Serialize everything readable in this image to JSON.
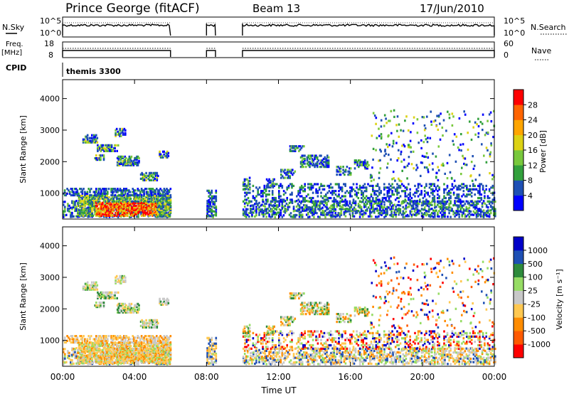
{
  "header": {
    "station": "Prince George (fitACF)",
    "beam": "Beam 13",
    "date": "17/Jun/2010"
  },
  "panels": {
    "nsky": {
      "left_label": "N.Sky",
      "left_ticks": [
        "10^5",
        "10^0"
      ],
      "right_label": "N.Search",
      "right_ticks": [
        "10^5",
        "10^0"
      ]
    },
    "freq": {
      "left_label_1": "Freq.",
      "left_label_2": "[MHz]",
      "left_ticks": [
        "18",
        "8"
      ],
      "right_label": "Nave",
      "right_ticks": [
        "60",
        "0"
      ]
    },
    "cpid": {
      "label": "CPID",
      "value": "themis 3300"
    }
  },
  "colors": {
    "power": [
      "#0000ff",
      "#1e50b4",
      "#32a03c",
      "#78c83c",
      "#dcd214",
      "#ffa500",
      "#ff6400",
      "#ff0000"
    ],
    "velocity": [
      "#ff0000",
      "#ff5a00",
      "#ff8c00",
      "#ffc850",
      "#c8c8c8",
      "#96dc64",
      "#2e8b3c",
      "#1e50b4",
      "#0000c8"
    ]
  },
  "chart_data": [
    {
      "type": "heatmap",
      "name": "power",
      "ylabel": "Slant Range [km]",
      "yticks": [
        1000,
        2000,
        3000,
        4000
      ],
      "ylim": [
        180,
        4600
      ],
      "colorbar_label": "Power [dB]",
      "colorbar_ticks": [
        "4",
        "8",
        "12",
        "16",
        "20",
        "24",
        "28"
      ]
    },
    {
      "type": "heatmap",
      "name": "velocity",
      "ylabel": "Slant Range [km]",
      "yticks": [
        1000,
        2000,
        3000,
        4000
      ],
      "ylim": [
        180,
        4600
      ],
      "colorbar_label": "Velocity [m s⁻¹]",
      "colorbar_ticks": [
        "-1000",
        "-500",
        "-100",
        "-25",
        "25",
        "100",
        "500",
        "1000"
      ]
    }
  ],
  "xaxis": {
    "label": "Time UT",
    "ticks": [
      "00:00",
      "04:00",
      "08:00",
      "12:00",
      "16:00",
      "20:00",
      "00:00"
    ],
    "xlim": [
      0,
      24
    ],
    "data_intervals": [
      [
        0,
        6.0
      ],
      [
        8.0,
        8.5
      ],
      [
        10.0,
        24.0
      ]
    ]
  }
}
